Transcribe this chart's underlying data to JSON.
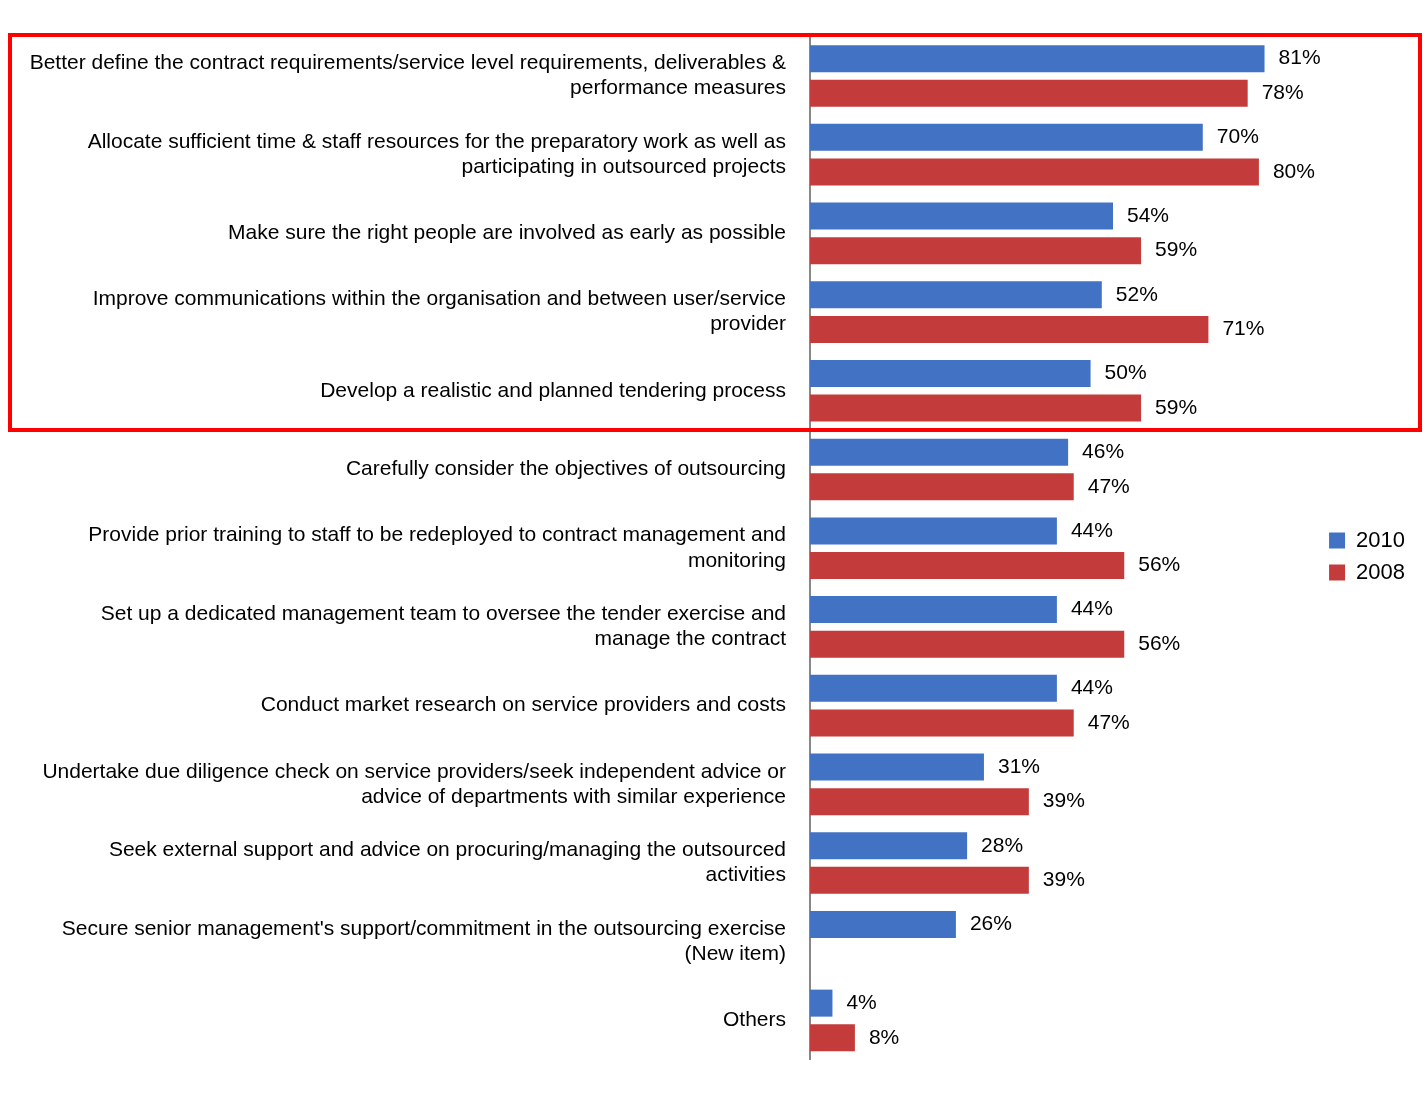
{
  "chart_data": {
    "type": "bar",
    "orientation": "horizontal",
    "legend": "right",
    "categories": [
      "Better define the contract requirements/service level requirements, deliverables & performance measures",
      "Allocate sufficient time & staff resources for the preparatory work as well as participating in outsourced projects",
      "Make sure the right people are involved as early as possible",
      "Improve communications within the organisation and between user/service provider",
      "Develop a realistic and planned tendering process",
      "Carefully consider the objectives of outsourcing",
      "Provide prior training to staff to be redeployed to contract management and monitoring",
      "Set up a dedicated management team to oversee the tender exercise and manage the contract",
      "Conduct market research on service providers and costs",
      "Undertake due diligence check on service providers/seek independent advice or advice of departments with similar experience",
      "Seek external support and advice on procuring/managing the outsourced activities",
      "Secure senior management's support/commitment in the outsourcing exercise (New item)",
      "Others"
    ],
    "series": [
      {
        "name": "2010",
        "color": "#4172c4",
        "values": [
          81,
          70,
          54,
          52,
          50,
          46,
          44,
          44,
          44,
          31,
          28,
          26,
          4
        ],
        "value_labels": [
          "81%",
          "70%",
          "54%",
          "52%",
          "50%",
          "46%",
          "44%",
          "44%",
          "44%",
          "31%",
          "28%",
          "26%",
          "4%"
        ]
      },
      {
        "name": "2008",
        "color": "#c43b3b",
        "values": [
          78,
          80,
          59,
          71,
          59,
          47,
          56,
          56,
          47,
          39,
          39,
          null,
          8
        ],
        "value_labels": [
          "78%",
          "80%",
          "59%",
          "71%",
          "59%",
          "47%",
          "56%",
          "56%",
          "47%",
          "39%",
          "39%",
          null,
          "8%"
        ]
      }
    ]
  }
}
